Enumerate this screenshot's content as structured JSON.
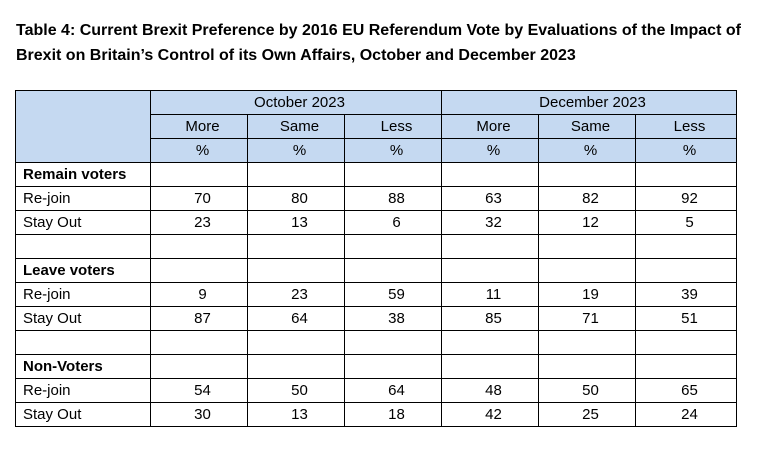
{
  "caption": "Table 4: Current Brexit Preference by 2016 EU Referendum Vote by Evaluations of the Impact of Brexit on Britain’s Control of its Own Affairs, October and December 2023",
  "periods": [
    "October 2023",
    "December 2023"
  ],
  "evaluations": [
    "More",
    "Same",
    "Less",
    "More",
    "Same",
    "Less"
  ],
  "unit": "%",
  "groups": [
    {
      "label": "Remain voters",
      "rows": [
        {
          "label": "Re-join",
          "values": [
            "70",
            "80",
            "88",
            "63",
            "82",
            "92"
          ]
        },
        {
          "label": "Stay Out",
          "values": [
            "23",
            "13",
            "6",
            "32",
            "12",
            "5"
          ]
        }
      ]
    },
    {
      "label": "Leave voters",
      "rows": [
        {
          "label": "Re-join",
          "values": [
            "9",
            "23",
            "59",
            "11",
            "19",
            "39"
          ]
        },
        {
          "label": "Stay Out",
          "values": [
            "87",
            "64",
            "38",
            "85",
            "71",
            "51"
          ]
        }
      ]
    },
    {
      "label": "Non-Voters",
      "rows": [
        {
          "label": "Re-join",
          "values": [
            "54",
            "50",
            "64",
            "48",
            "50",
            "65"
          ]
        },
        {
          "label": "Stay Out",
          "values": [
            "30",
            "13",
            "18",
            "42",
            "25",
            "24"
          ]
        }
      ]
    }
  ],
  "colors": {
    "header_bg": "#c5d9f1",
    "border": "#000000"
  }
}
